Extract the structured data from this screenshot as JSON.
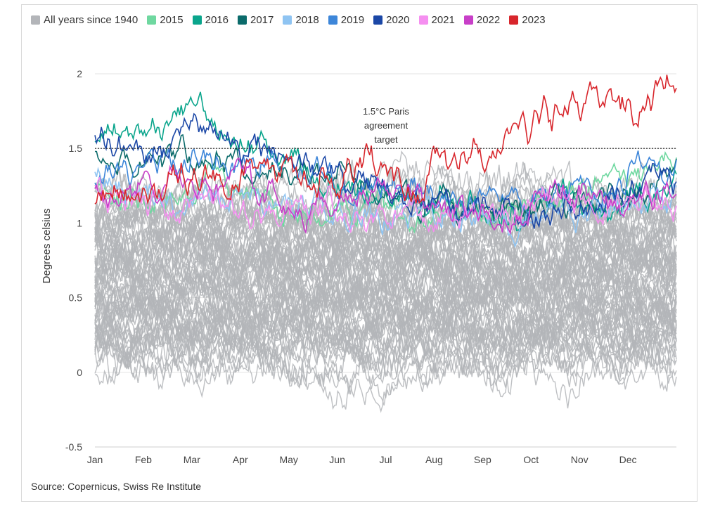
{
  "chart_data": {
    "type": "line",
    "title": "",
    "xlabel": "",
    "ylabel": "Degrees celsius",
    "x_categories": [
      "Jan",
      "Feb",
      "Mar",
      "Apr",
      "May",
      "Jun",
      "Jul",
      "Aug",
      "Sep",
      "Oct",
      "Nov",
      "Dec"
    ],
    "ylim": [
      -0.5,
      2.1
    ],
    "yticks": [
      -0.5,
      0,
      0.5,
      1,
      1.5,
      2
    ],
    "ytick_labels": [
      "-0.5",
      "0",
      "0.5",
      "1",
      "1.5",
      "2"
    ],
    "grid": "horizontal",
    "legend_position": "top",
    "reference_line": {
      "value": 1.5,
      "label_lines": [
        "1.5°C Paris",
        "agreement",
        "target"
      ]
    },
    "source": "Source: Copernicus, Swiss Re Institute",
    "background_series": {
      "name": "All years since 1940",
      "color": "#b3b5b9",
      "count": 75,
      "description_range": [
        -0.4,
        1.3
      ]
    },
    "series": [
      {
        "name": "2015",
        "color": "#6fd8a0",
        "key_values_by_month": [
          1.2,
          1.15,
          1.3,
          1.15,
          1.05,
          1.05,
          1.05,
          1.05,
          1.1,
          1.25,
          1.3,
          1.45
        ]
      },
      {
        "name": "2016",
        "color": "#0aa58c",
        "key_values_by_month": [
          1.6,
          1.6,
          1.85,
          1.5,
          1.45,
          1.25,
          1.15,
          1.1,
          1.1,
          1.15,
          1.15,
          1.3
        ]
      },
      {
        "name": "2017",
        "color": "#0b6b6b",
        "key_values_by_month": [
          1.5,
          1.45,
          1.4,
          1.35,
          1.35,
          1.25,
          1.15,
          1.1,
          1.05,
          1.15,
          1.2,
          1.3
        ]
      },
      {
        "name": "2018",
        "color": "#8fc4f2",
        "key_values_by_month": [
          1.3,
          1.2,
          1.2,
          1.2,
          1.15,
          1.1,
          1.1,
          1.05,
          1.05,
          1.1,
          1.15,
          1.2
        ]
      },
      {
        "name": "2019",
        "color": "#3d86d9",
        "key_values_by_month": [
          1.3,
          1.35,
          1.4,
          1.35,
          1.3,
          1.2,
          1.2,
          1.15,
          1.15,
          1.2,
          1.3,
          1.45
        ]
      },
      {
        "name": "2020",
        "color": "#1b47a6",
        "key_values_by_month": [
          1.6,
          1.45,
          1.65,
          1.5,
          1.45,
          1.25,
          1.15,
          1.1,
          1.1,
          1.15,
          1.25,
          1.3
        ]
      },
      {
        "name": "2021",
        "color": "#f58ff0",
        "key_values_by_month": [
          1.2,
          1.1,
          1.1,
          1.1,
          1.1,
          1.05,
          1.05,
          1.05,
          1.1,
          1.15,
          1.1,
          1.2
        ]
      },
      {
        "name": "2022",
        "color": "#c83fc8",
        "key_values_by_month": [
          1.25,
          1.2,
          1.25,
          1.2,
          1.15,
          1.15,
          1.15,
          1.1,
          1.05,
          1.2,
          1.15,
          1.25
        ]
      },
      {
        "name": "2023",
        "color": "#d8262c",
        "key_values_by_month": [
          1.15,
          1.15,
          1.3,
          1.3,
          1.3,
          1.4,
          1.3,
          1.5,
          1.55,
          1.85,
          1.75,
          1.9
        ]
      }
    ]
  }
}
